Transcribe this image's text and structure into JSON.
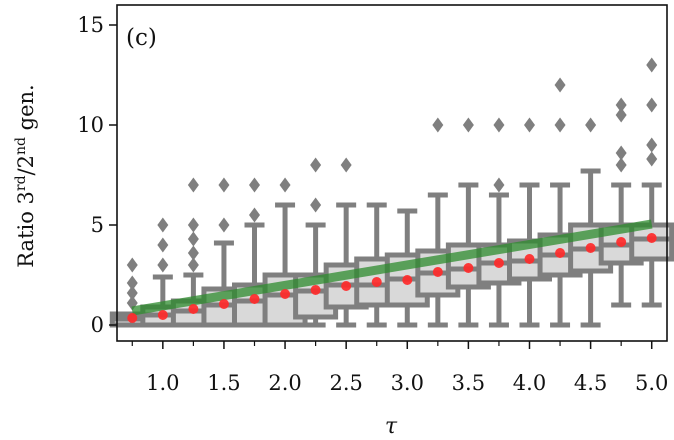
{
  "chart_data": {
    "type": "boxplot",
    "panel_label": "(c)",
    "xlabel": "τ",
    "ylabel": {
      "prefix": "Ratio 3",
      "sup1": "rd",
      "mid": "/2",
      "sup2": "nd",
      "suffix": " gen."
    },
    "xlim": [
      0.625,
      5.125
    ],
    "ylim": [
      -0.8,
      16
    ],
    "x_ticks": [
      1.0,
      1.5,
      2.0,
      2.5,
      3.0,
      3.5,
      4.0,
      4.5,
      5.0
    ],
    "x_tick_labels": [
      "1.0",
      "1.5",
      "2.0",
      "2.5",
      "3.0",
      "3.5",
      "4.0",
      "4.5",
      "5.0"
    ],
    "x_minor_ticks": [
      0.75,
      1.25,
      1.75,
      2.25,
      2.75,
      3.25,
      3.75,
      4.25,
      4.75
    ],
    "y_ticks": [
      0,
      5,
      10,
      15
    ],
    "y_tick_labels": [
      "0",
      "5",
      "10",
      "15"
    ],
    "colors": {
      "box_edge": "#7f7f7f",
      "box_fill": "#d9d9d9",
      "mean": "#ff2a2a",
      "fit": "#2e8b2e"
    },
    "boxes": [
      {
        "x": 0.75,
        "q1": 0.0,
        "median": 0.3,
        "q3": 0.55,
        "whislo": 0.0,
        "whishi": 0.55,
        "fliers": [
          1.1,
          1.6,
          2.1,
          3.0
        ],
        "mean": 0.35
      },
      {
        "x": 1.0,
        "q1": 0.0,
        "median": 0.5,
        "q3": 0.9,
        "whislo": 0.0,
        "whishi": 2.4,
        "fliers": [
          3.0,
          4.0,
          5.0
        ],
        "mean": 0.5
      },
      {
        "x": 1.25,
        "q1": 0.0,
        "median": 0.7,
        "q3": 1.2,
        "whislo": 0.0,
        "whishi": 2.5,
        "fliers": [
          3.0,
          3.6,
          4.3,
          5.0,
          7.0
        ],
        "mean": 0.8
      },
      {
        "x": 1.5,
        "q1": 0.0,
        "median": 1.0,
        "q3": 1.8,
        "whislo": 0.0,
        "whishi": 4.1,
        "fliers": [
          5.0,
          7.0
        ],
        "mean": 1.05
      },
      {
        "x": 1.75,
        "q1": 0.0,
        "median": 1.2,
        "q3": 2.0,
        "whislo": 0.0,
        "whishi": 5.0,
        "fliers": [
          5.5,
          7.0
        ],
        "mean": 1.3
      },
      {
        "x": 2.0,
        "q1": 0.0,
        "median": 1.5,
        "q3": 2.5,
        "whislo": 0.0,
        "whishi": 6.0,
        "fliers": [
          7.0
        ],
        "mean": 1.55
      },
      {
        "x": 2.25,
        "q1": 0.4,
        "median": 1.7,
        "q3": 2.5,
        "whislo": 0.0,
        "whishi": 5.0,
        "fliers": [
          6.0,
          8.0
        ],
        "mean": 1.75
      },
      {
        "x": 2.5,
        "q1": 0.9,
        "median": 2.0,
        "q3": 3.0,
        "whislo": 0.0,
        "whishi": 6.0,
        "fliers": [
          8.0
        ],
        "mean": 1.95
      },
      {
        "x": 2.75,
        "q1": 1.0,
        "median": 2.0,
        "q3": 3.3,
        "whislo": 0.0,
        "whishi": 6.0,
        "fliers": [],
        "mean": 2.15
      },
      {
        "x": 3.0,
        "q1": 1.0,
        "median": 2.3,
        "q3": 3.5,
        "whislo": 0.0,
        "whishi": 5.7,
        "fliers": [],
        "mean": 2.25
      },
      {
        "x": 3.25,
        "q1": 1.5,
        "median": 2.6,
        "q3": 3.7,
        "whislo": 0.0,
        "whishi": 6.5,
        "fliers": [
          10.0
        ],
        "mean": 2.65
      },
      {
        "x": 3.5,
        "q1": 1.9,
        "median": 2.8,
        "q3": 4.0,
        "whislo": 0.0,
        "whishi": 7.0,
        "fliers": [
          10.0
        ],
        "mean": 2.85
      },
      {
        "x": 3.75,
        "q1": 2.1,
        "median": 3.1,
        "q3": 4.0,
        "whislo": 0.0,
        "whishi": 6.5,
        "fliers": [
          7.0,
          10.0
        ],
        "mean": 3.1
      },
      {
        "x": 4.0,
        "q1": 2.3,
        "median": 3.2,
        "q3": 4.2,
        "whislo": 0.0,
        "whishi": 7.0,
        "fliers": [
          10.0
        ],
        "mean": 3.3
      },
      {
        "x": 4.25,
        "q1": 2.5,
        "median": 3.5,
        "q3": 4.5,
        "whislo": 0.0,
        "whishi": 7.0,
        "fliers": [
          10.0,
          12.0
        ],
        "mean": 3.6
      },
      {
        "x": 4.5,
        "q1": 2.7,
        "median": 3.8,
        "q3": 5.0,
        "whislo": 0.0,
        "whishi": 7.7,
        "fliers": [
          10.0
        ],
        "mean": 3.85
      },
      {
        "x": 4.75,
        "q1": 3.1,
        "median": 4.0,
        "q3": 5.0,
        "whislo": 1.0,
        "whishi": 7.0,
        "fliers": [
          8.0,
          8.6,
          10.5,
          11.0
        ],
        "mean": 4.15
      },
      {
        "x": 5.0,
        "q1": 3.3,
        "median": 4.3,
        "q3": 5.0,
        "whislo": 1.0,
        "whishi": 7.0,
        "fliers": [
          8.3,
          9.0,
          11.0,
          13.0
        ],
        "mean": 4.35
      }
    ],
    "fit_line": {
      "x": [
        0.75,
        5.0
      ],
      "y": [
        0.7,
        5.05
      ]
    }
  }
}
